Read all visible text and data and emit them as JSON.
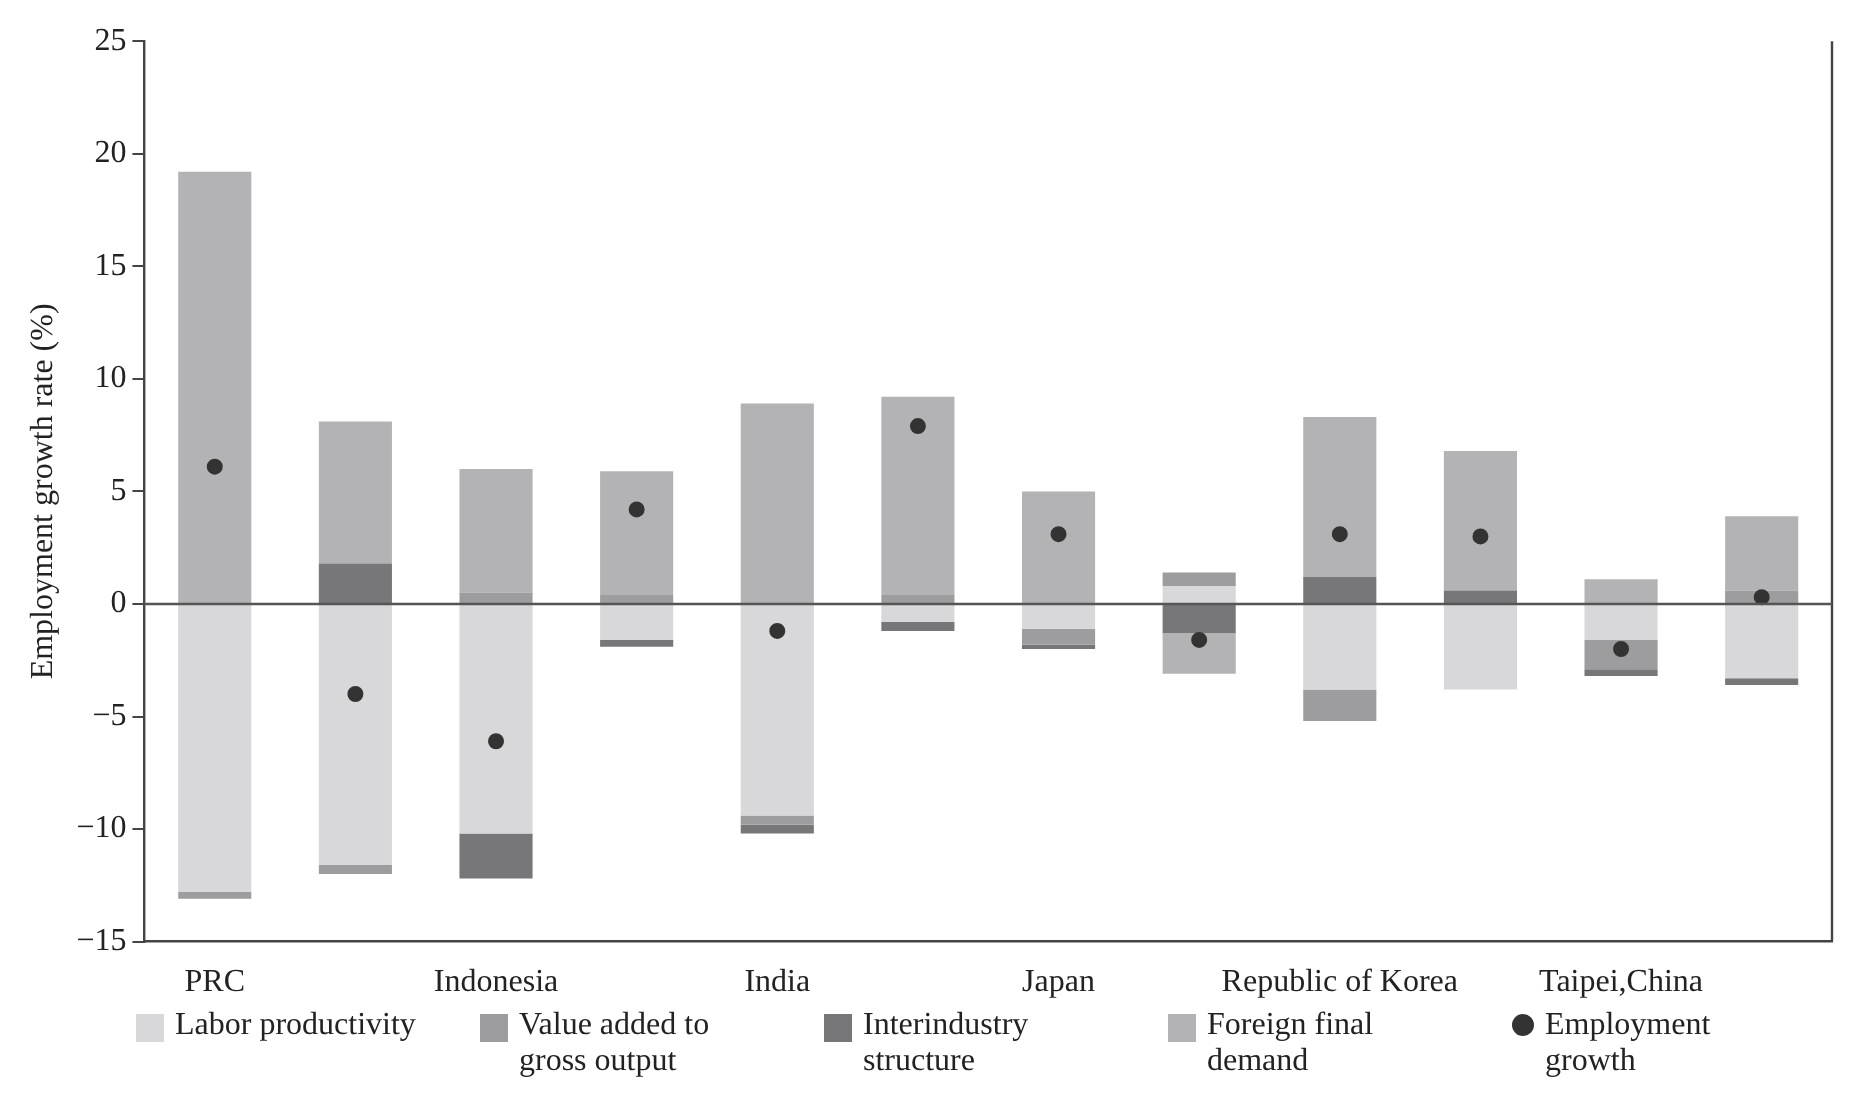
{
  "chart_data": {
    "type": "bar",
    "stacked": true,
    "ylabel": "Employment growth rate (%)",
    "categories": [
      "PRC",
      null,
      "Indonesia",
      null,
      "India",
      null,
      "Japan",
      null,
      "Republic of Korea",
      null,
      "Taipei,China",
      null
    ],
    "series": [
      {
        "name": "Labor productivity",
        "color": "#d8d8da",
        "values": [
          -12.8,
          -11.6,
          -10.2,
          -1.6,
          -9.4,
          -0.8,
          -1.1,
          0.8,
          -3.8,
          -3.8,
          -1.6,
          -3.3
        ]
      },
      {
        "name": "Value added to gross output",
        "color": "#9d9d9f",
        "values": [
          -0.3,
          -0.4,
          0.5,
          0.4,
          -0.4,
          0.4,
          -0.7,
          0.6,
          -1.4,
          null,
          -1.3,
          0.6
        ]
      },
      {
        "name": "Interindustry structure",
        "color": "#77777a",
        "values": [
          null,
          1.8,
          -2.0,
          -0.3,
          -0.4,
          -0.4,
          -0.2,
          -1.3,
          1.2,
          0.6,
          -0.3,
          -0.3
        ]
      },
      {
        "name": "Foreign final demand",
        "color": "#b3b3b6",
        "values": [
          19.2,
          6.3,
          5.5,
          5.5,
          8.9,
          8.8,
          5.0,
          -1.8,
          7.1,
          6.2,
          1.1,
          3.3
        ]
      },
      {
        "name": "Employment growth",
        "type": "scatter",
        "color": "#333333",
        "values": [
          6.1,
          -4.0,
          -6.1,
          4.2,
          -1.2,
          7.9,
          3.1,
          -1.6,
          3.1,
          3.0,
          -2.0,
          0.3
        ]
      }
    ],
    "ylim": [
      -15,
      25
    ],
    "yticks": [
      {
        "value": -15,
        "label": "−15"
      },
      {
        "value": -10,
        "label": "−10"
      },
      {
        "value": -5,
        "label": "−5"
      },
      0,
      5,
      10,
      15,
      20,
      25
    ],
    "ref_lines": [
      {
        "axis": "y",
        "value": 0,
        "color": "#555555"
      }
    ],
    "marker": "circle",
    "legend": "bottom",
    "grid": false
  }
}
